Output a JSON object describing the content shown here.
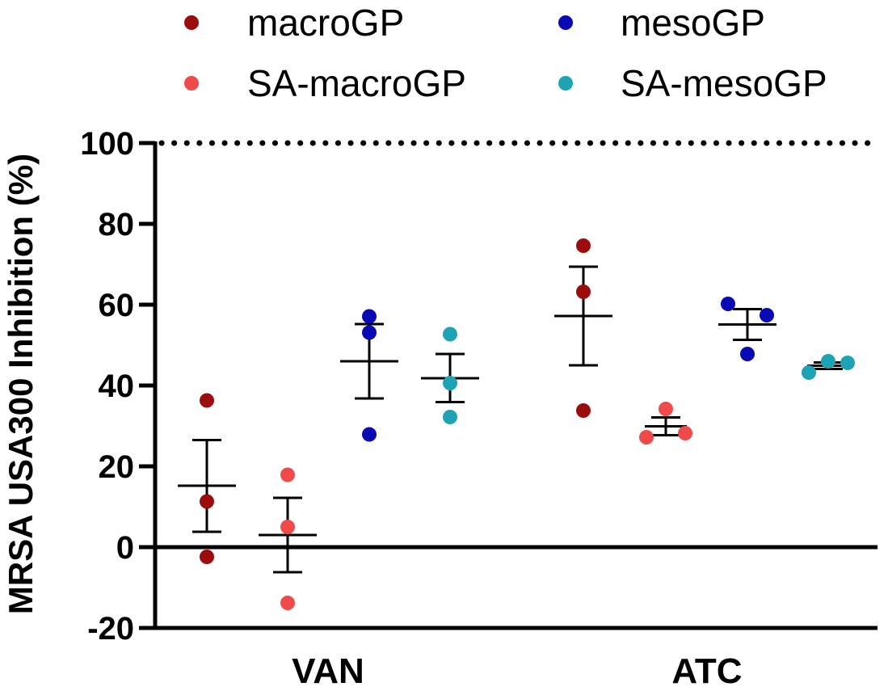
{
  "chart_data": {
    "type": "scatter",
    "title": "",
    "xlabel": "",
    "ylabel": "MRSA USA300 Inhibition (%)",
    "ylim": [
      -20,
      100
    ],
    "yticks": [
      -20,
      0,
      20,
      40,
      60,
      80,
      100
    ],
    "ytick_labels": [
      "-20",
      "0",
      "20",
      "40",
      "60",
      "80",
      "100"
    ],
    "categories": [
      "VAN",
      "ATC"
    ],
    "reference_line": {
      "y": 100,
      "style": "dotted"
    },
    "zero_line": true,
    "legend_position": "top",
    "series": [
      {
        "name": "macroGP",
        "color": "#9b0d0d",
        "groups": [
          {
            "category": "VAN",
            "points": [
              36.3,
              11.3,
              -2.4
            ],
            "mean": 15.2,
            "sem_upper": 26.5,
            "sem_lower": 3.8
          },
          {
            "category": "ATC",
            "points": [
              74.6,
              63.2,
              33.8
            ],
            "mean": 57.2,
            "sem_upper": 69.4,
            "sem_lower": 45.0
          }
        ]
      },
      {
        "name": "SA-macroGP",
        "color": "#f04a4a",
        "groups": [
          {
            "category": "VAN",
            "points": [
              17.9,
              5.0,
              -13.8
            ],
            "mean": 3.0,
            "sem_upper": 12.2,
            "sem_lower": -6.2
          },
          {
            "category": "ATC",
            "points": [
              34.2,
              27.2,
              28.2
            ],
            "mean": 29.9,
            "sem_upper": 32.1,
            "sem_lower": 27.7
          }
        ]
      },
      {
        "name": "mesoGP",
        "color": "#0a0ab4",
        "groups": [
          {
            "category": "VAN",
            "points": [
              57.1,
              53.1,
              27.9
            ],
            "mean": 46.0,
            "sem_upper": 55.2,
            "sem_lower": 36.8
          },
          {
            "category": "ATC",
            "points": [
              60.2,
              57.4,
              47.8
            ],
            "mean": 55.1,
            "sem_upper": 58.9,
            "sem_lower": 51.3
          }
        ]
      },
      {
        "name": "SA-mesoGP",
        "color": "#1ea3b4",
        "groups": [
          {
            "category": "VAN",
            "points": [
              52.7,
              40.6,
              32.2
            ],
            "mean": 41.8,
            "sem_upper": 47.8,
            "sem_lower": 35.9
          },
          {
            "category": "ATC",
            "points": [
              43.2,
              46.0,
              45.6
            ],
            "mean": 44.9,
            "sem_upper": 45.7,
            "sem_lower": 44.1
          }
        ]
      }
    ]
  }
}
